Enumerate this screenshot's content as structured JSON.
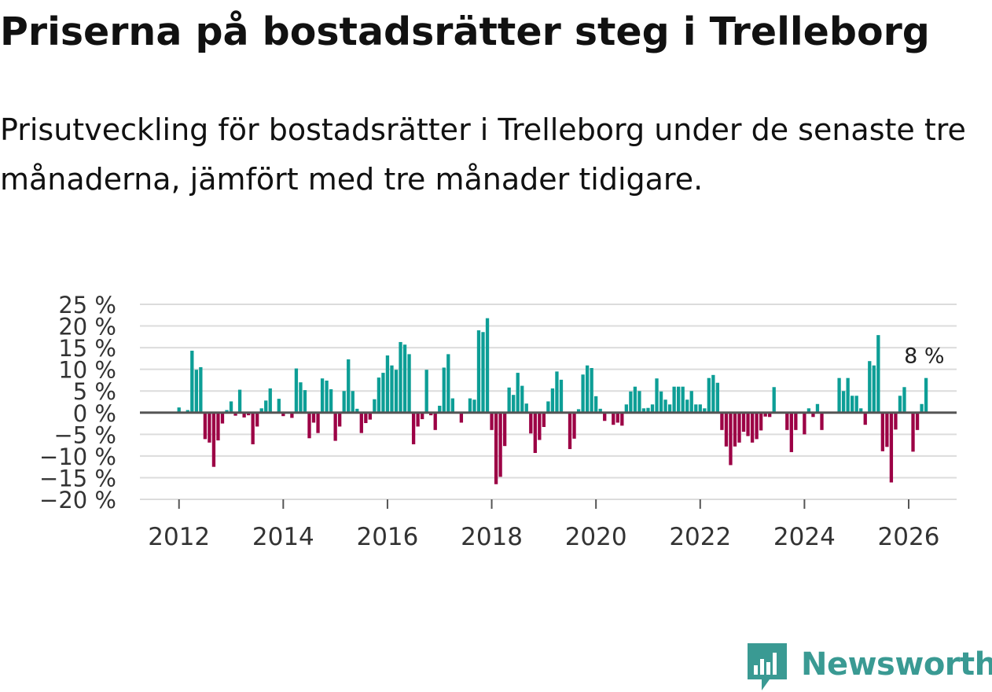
{
  "title": "Priserna på bostadsrätter steg i Trelleborg",
  "subtitle": "Prisutveckling för bostadsrätter i Trelleborg under de senaste tre månaderna, jämfört med tre månader tidigare.",
  "logo": {
    "text": "Newsworthy",
    "icon": "bar-chart-speech-bubble-icon"
  },
  "colors": {
    "positive": "#0d9e96",
    "negative": "#9c0045",
    "grid": "#dcdcdc",
    "zero_line": "#555555",
    "tick_text": "#333333",
    "brand": "#3a9a93"
  },
  "chart_data": {
    "type": "bar",
    "title": "Priserna på bostadsrätter steg i Trelleborg",
    "xlabel": "",
    "ylabel": "",
    "unit": "%",
    "ylim": [
      -20,
      25
    ],
    "yticks": [
      25,
      20,
      15,
      10,
      5,
      0,
      -5,
      -10,
      -15,
      -20
    ],
    "ytick_labels": [
      "25 %",
      "20 %",
      "15 %",
      "10 %",
      "5 %",
      "0 %",
      "−5 %",
      "−10 %",
      "−15 %",
      "−20 %"
    ],
    "xlim": [
      2011.25,
      2026.92
    ],
    "xticks": [
      2012,
      2014,
      2016,
      2018,
      2020,
      2022,
      2024,
      2026
    ],
    "xtick_labels": [
      "2012",
      "2014",
      "2016",
      "2018",
      "2020",
      "2022",
      "2024",
      "2026"
    ],
    "grid": true,
    "annotation": {
      "text": "8 %",
      "target": "last"
    },
    "start": {
      "year": 2012,
      "month": 1
    },
    "values": [
      1.2,
      null,
      0.6,
      14.3,
      9.9,
      10.5,
      -6.1,
      -6.9,
      -12.5,
      -6.4,
      -2.5,
      0.6,
      2.6,
      -0.7,
      5.3,
      -1.1,
      -0.6,
      -7.3,
      -3.2,
      1.0,
      2.8,
      5.6,
      null,
      3.2,
      -0.8,
      null,
      -1.2,
      10.2,
      7.0,
      5.2,
      -5.9,
      -2.3,
      -4.7,
      7.9,
      7.4,
      5.4,
      -6.5,
      -3.2,
      5.0,
      12.3,
      5.0,
      0.9,
      -4.7,
      -2.4,
      -1.6,
      3.1,
      8.1,
      9.2,
      13.2,
      10.9,
      9.9,
      16.3,
      15.7,
      13.5,
      -7.3,
      -3.2,
      -1.5,
      9.9,
      -0.6,
      -4.0,
      1.6,
      10.4,
      13.5,
      3.3,
      null,
      -2.3,
      null,
      3.3,
      3.0,
      19.0,
      18.6,
      21.8,
      -4.0,
      -16.5,
      -14.8,
      -7.7,
      5.8,
      4.1,
      9.2,
      6.2,
      2.1,
      -4.8,
      -9.3,
      -6.3,
      -3.3,
      2.6,
      5.6,
      9.5,
      7.6,
      null,
      -8.4,
      -6.0,
      0.8,
      8.8,
      10.9,
      10.3,
      3.8,
      0.9,
      -1.9,
      null,
      -2.8,
      -2.3,
      -3.0,
      1.9,
      4.9,
      6.0,
      5.0,
      1.0,
      1.1,
      1.9,
      7.9,
      4.9,
      3.0,
      1.9,
      6.0,
      6.0,
      6.0,
      3.0,
      5.0,
      1.9,
      1.9,
      1.0,
      8.0,
      8.7,
      6.9,
      -4.0,
      -7.8,
      -12.1,
      -7.8,
      -6.9,
      -4.4,
      -5.4,
      -6.9,
      -6.1,
      -4.1,
      -0.9,
      -1.0,
      5.9,
      null,
      null,
      -4.0,
      -9.1,
      -4.0,
      null,
      -5.0,
      1.0,
      -1.0,
      2.0,
      -4.0,
      null,
      null,
      null,
      8.0,
      5.0,
      8.0,
      3.9,
      3.9,
      1.0,
      -2.8,
      11.9,
      10.9,
      17.9,
      -8.9,
      -7.9,
      -16.1,
      -3.9,
      3.9,
      5.9,
      null,
      -9.0,
      -4.0,
      2.0,
      8.0
    ]
  }
}
